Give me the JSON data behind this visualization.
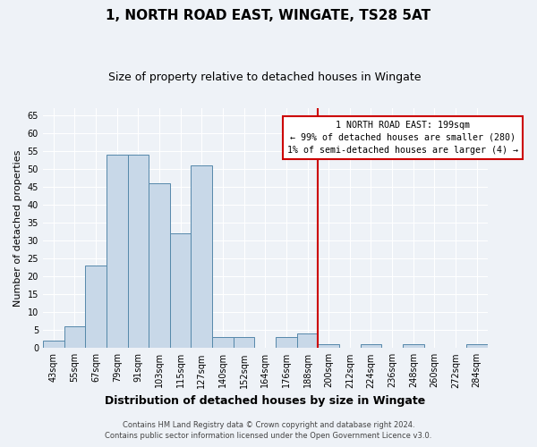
{
  "title": "1, NORTH ROAD EAST, WINGATE, TS28 5AT",
  "subtitle": "Size of property relative to detached houses in Wingate",
  "xlabel": "Distribution of detached houses by size in Wingate",
  "ylabel": "Number of detached properties",
  "bin_labels": [
    "43sqm",
    "55sqm",
    "67sqm",
    "79sqm",
    "91sqm",
    "103sqm",
    "115sqm",
    "127sqm",
    "140sqm",
    "152sqm",
    "164sqm",
    "176sqm",
    "188sqm",
    "200sqm",
    "212sqm",
    "224sqm",
    "236sqm",
    "248sqm",
    "260sqm",
    "272sqm",
    "284sqm"
  ],
  "bar_values": [
    2,
    6,
    23,
    54,
    54,
    46,
    32,
    51,
    3,
    3,
    0,
    3,
    4,
    1,
    0,
    1,
    0,
    1,
    0,
    0,
    1
  ],
  "bar_color": "#c8d8e8",
  "bar_edge_color": "#5588aa",
  "vline_color": "#cc0000",
  "vline_index": 13,
  "annotation_title": "1 NORTH ROAD EAST: 199sqm",
  "annotation_line1": "← 99% of detached houses are smaller (280)",
  "annotation_line2": "1% of semi-detached houses are larger (4) →",
  "annotation_box_color": "#ffffff",
  "annotation_box_edge": "#cc0000",
  "ylim": [
    0,
    67
  ],
  "yticks": [
    0,
    5,
    10,
    15,
    20,
    25,
    30,
    35,
    40,
    45,
    50,
    55,
    60,
    65
  ],
  "footer1": "Contains HM Land Registry data © Crown copyright and database right 2024.",
  "footer2": "Contains public sector information licensed under the Open Government Licence v3.0.",
  "background_color": "#eef2f7",
  "grid_color": "#ffffff",
  "title_fontsize": 11,
  "subtitle_fontsize": 9,
  "xlabel_fontsize": 9,
  "ylabel_fontsize": 8,
  "tick_fontsize": 7,
  "footer_fontsize": 6
}
